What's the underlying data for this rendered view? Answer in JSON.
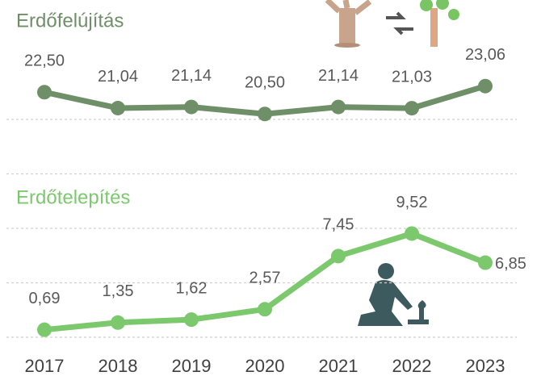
{
  "chart_data": [
    {
      "type": "line",
      "title": "Erdőfelújítás",
      "color": "#6f8f68",
      "values": [
        22.5,
        21.04,
        21.14,
        20.5,
        21.14,
        21.03,
        23.06
      ],
      "value_labels": [
        "22,50",
        "21,04",
        "21,14",
        "20,50",
        "21,14",
        "21,03",
        "23,06"
      ],
      "ylim": [
        15,
        25
      ],
      "yticks": [
        15,
        20
      ],
      "grid": true
    },
    {
      "type": "line",
      "title": "Erdőtelepítés",
      "color": "#7cc86d",
      "categories": [
        "2017",
        "2018",
        "2019",
        "2020",
        "2021",
        "2022",
        "2023"
      ],
      "values": [
        0.69,
        1.35,
        1.62,
        2.57,
        7.45,
        9.52,
        6.85
      ],
      "value_labels": [
        "0,69",
        "1,35",
        "1,62",
        "2,57",
        "7,45",
        "9,52",
        "6,85"
      ],
      "ylim": [
        0,
        10
      ],
      "yticks": [
        0,
        5,
        10
      ],
      "grid": true
    }
  ]
}
